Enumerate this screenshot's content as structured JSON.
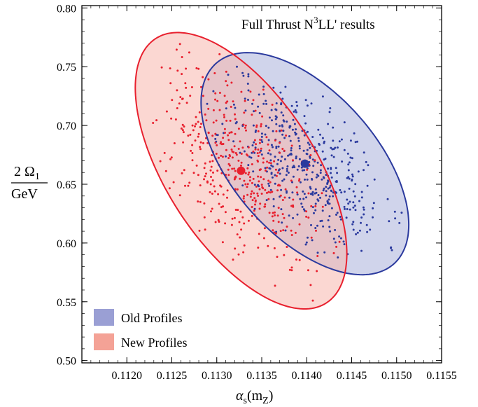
{
  "chart_data": {
    "type": "scatter",
    "title_parts": [
      "Full Thrust N",
      "3",
      "LL' results"
    ],
    "xlabel_parts": [
      "α",
      "s",
      "(m",
      "Z",
      ")"
    ],
    "ylabel_parts": [
      "2 Ω",
      "1",
      "GeV"
    ],
    "xlim": [
      0.1115,
      0.1155
    ],
    "ylim": [
      0.498,
      0.802
    ],
    "x_ticks": [
      "0.1120",
      "0.1125",
      "0.1130",
      "0.1135",
      "0.1140",
      "0.1145",
      "0.1150",
      "0.1155"
    ],
    "x_tick_values": [
      0.112,
      0.1125,
      0.113,
      0.1135,
      0.114,
      0.1145,
      0.115,
      0.1155
    ],
    "y_ticks": [
      "0.50",
      "0.55",
      "0.60",
      "0.65",
      "0.70",
      "0.75",
      "0.80"
    ],
    "y_tick_values": [
      0.5,
      0.55,
      0.6,
      0.65,
      0.7,
      0.75,
      0.8
    ],
    "legend_position": "bottom-left",
    "series": [
      {
        "name": "Old Profiles",
        "color": "#2b3a9e",
        "fill": "#aab0da",
        "central": [
          0.11398,
          0.6675
        ],
        "ellipse": {
          "cx": 0.11398,
          "cy": 0.6675,
          "sx": 0.00055,
          "sy": 0.045,
          "rho": -0.55
        },
        "n_points": 450,
        "seed": 11
      },
      {
        "name": "New Profiles",
        "color": "#e8202e",
        "fill": "#f7b6ad",
        "central": [
          0.11327,
          0.6615
        ],
        "ellipse": {
          "cx": 0.11327,
          "cy": 0.6615,
          "sx": 0.00056,
          "sy": 0.056,
          "rho": -0.6
        },
        "n_points": 430,
        "seed": 7
      }
    ]
  }
}
